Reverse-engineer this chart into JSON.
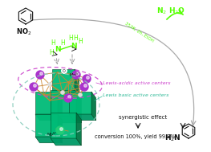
{
  "bg_color": "#ffffff",
  "fig_width": 2.63,
  "fig_height": 1.89,
  "dpi": 100,
  "arrow_color": "#aaaaaa",
  "green_color": "#55ff00",
  "magenta_color": "#cc44cc",
  "cyan_color": "#44ccaa",
  "teal_color": "#009966",
  "teal_mid": "#007744",
  "teal_dark": "#004422",
  "teal_light": "#00bb77",
  "orange_color": "#cc8833",
  "purple_color": "#aa33cc",
  "black_color": "#111111",
  "n2_h2o_text": "N$_2$ H$_2$O",
  "condition_text": "353K, 2h, EtOH",
  "lewis_acid_text": "Lewis-acidic active centers",
  "lewis_basic_text": "Lewis basic active centers",
  "synergistic_text": "synergistic effect",
  "conversion_text": "conversion 100%, yield 99.8%",
  "h2n_text": "H$_2$N",
  "no2_text": "NO$_2$"
}
